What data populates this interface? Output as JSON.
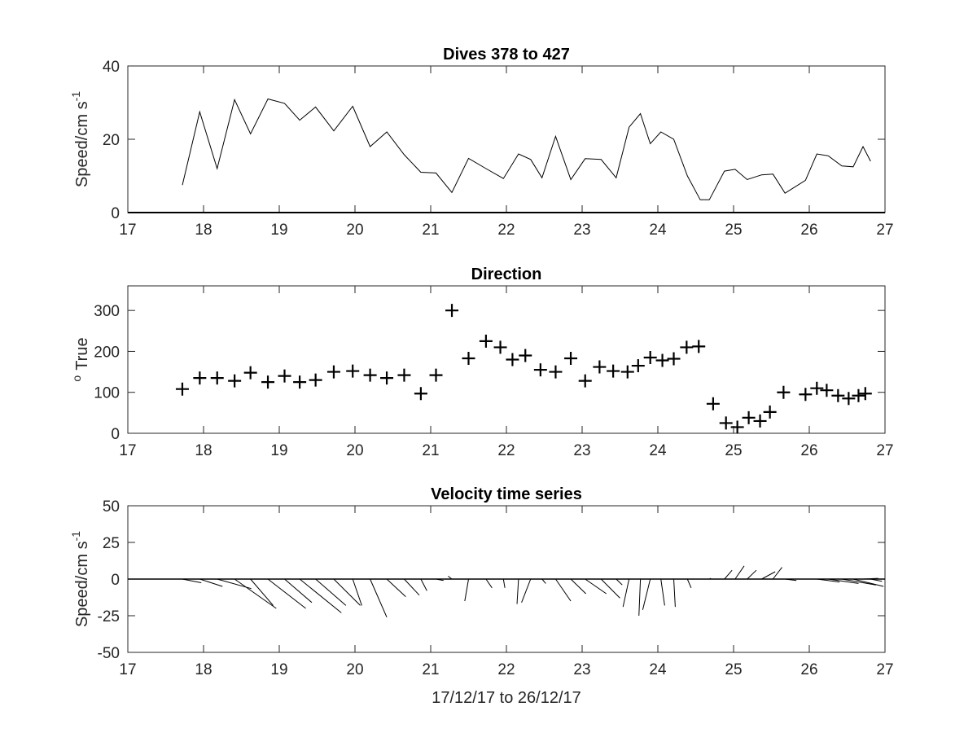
{
  "chart_data": [
    {
      "type": "line",
      "title": "Dives 378 to 427",
      "ylabel": "Speed/cm s",
      "ylabel_sup": "-1",
      "xlim": [
        17,
        27
      ],
      "ylim": [
        0,
        40
      ],
      "xticks": [
        17,
        18,
        19,
        20,
        21,
        22,
        23,
        24,
        25,
        26,
        27
      ],
      "yticks": [
        0,
        20,
        40
      ],
      "x": [
        17.72,
        17.95,
        18.18,
        18.41,
        18.62,
        18.85,
        19.07,
        19.27,
        19.48,
        19.72,
        19.97,
        20.2,
        20.42,
        20.65,
        20.87,
        21.07,
        21.28,
        21.5,
        21.73,
        21.96,
        22.16,
        22.32,
        22.47,
        22.65,
        22.85,
        23.04,
        23.25,
        23.45,
        23.62,
        23.77,
        23.9,
        24.04,
        24.21,
        24.39,
        24.56,
        24.68,
        24.88,
        25.02,
        25.18,
        25.37,
        25.52,
        25.68,
        25.95,
        26.1,
        26.25,
        26.43,
        26.58,
        26.71,
        26.81
      ],
      "y": [
        7.5,
        27.5,
        12,
        30.8,
        21.5,
        31,
        29.8,
        25.2,
        28.8,
        22.3,
        29,
        18,
        22,
        15.8,
        11,
        10.8,
        5.5,
        14.8,
        12,
        9.3,
        16,
        14.5,
        9.5,
        20.8,
        9,
        14.7,
        14.5,
        9.5,
        23.3,
        27,
        18.8,
        22,
        20,
        10,
        3.5,
        3.5,
        11.3,
        11.8,
        9,
        10.3,
        10.5,
        5.3,
        8.8,
        16,
        15.5,
        12.7,
        12.5,
        18,
        14
      ]
    },
    {
      "type": "scatter",
      "title": "Direction",
      "ylabel": "True",
      "ylabel_sup": "o",
      "marker": "+",
      "xlim": [
        17,
        27
      ],
      "ylim": [
        0,
        360
      ],
      "xticks": [
        17,
        18,
        19,
        20,
        21,
        22,
        23,
        24,
        25,
        26,
        27
      ],
      "yticks": [
        0,
        100,
        200,
        300
      ],
      "x": [
        17.72,
        17.95,
        18.18,
        18.41,
        18.62,
        18.85,
        19.07,
        19.27,
        19.48,
        19.72,
        19.97,
        20.2,
        20.42,
        20.65,
        20.87,
        21.07,
        21.28,
        21.5,
        21.73,
        21.92,
        22.08,
        22.25,
        22.45,
        22.65,
        22.85,
        23.04,
        23.23,
        23.41,
        23.6,
        23.74,
        23.9,
        24.06,
        24.21,
        24.38,
        24.54,
        24.73,
        24.9,
        25.05,
        25.2,
        25.35,
        25.48,
        25.66,
        25.95,
        26.1,
        26.23,
        26.38,
        26.52,
        26.65,
        26.74
      ],
      "y": [
        108,
        135,
        135,
        128,
        148,
        125,
        140,
        125,
        130,
        150,
        152,
        142,
        135,
        142,
        97,
        142,
        300,
        183,
        225,
        210,
        180,
        190,
        155,
        150,
        183,
        128,
        162,
        152,
        150,
        165,
        185,
        178,
        182,
        210,
        212,
        72,
        25,
        15,
        38,
        30,
        52,
        100,
        95,
        110,
        105,
        92,
        85,
        92,
        97
      ]
    },
    {
      "type": "quiver",
      "title": "Velocity time series",
      "ylabel": "Speed/cm s",
      "ylabel_sup": "-1",
      "xlabel": "17/12/17 to 26/12/17",
      "xlim": [
        17,
        27
      ],
      "ylim": [
        -50,
        50
      ],
      "xticks": [
        17,
        18,
        19,
        20,
        21,
        22,
        23,
        24,
        25,
        26,
        27
      ],
      "yticks": [
        -50,
        -25,
        0,
        25,
        50
      ],
      "ytick_labels": [
        "-50",
        "-25",
        "0",
        "25",
        "50"
      ],
      "x": [
        17.72,
        17.95,
        18.18,
        18.41,
        18.62,
        18.85,
        19.07,
        19.27,
        19.48,
        19.72,
        19.97,
        20.2,
        20.42,
        20.65,
        20.87,
        21.07,
        21.28,
        21.5,
        21.73,
        21.96,
        22.16,
        22.32,
        22.47,
        22.65,
        22.85,
        23.04,
        23.25,
        23.45,
        23.62,
        23.77,
        23.9,
        24.04,
        24.21,
        24.39,
        24.56,
        24.68,
        24.88,
        25.02,
        25.18,
        25.37,
        25.52,
        25.68,
        25.95,
        26.1,
        26.25,
        26.43,
        26.58,
        26.71,
        26.81
      ],
      "u": [
        0.25,
        0.3,
        0.45,
        0.55,
        0.3,
        0.5,
        0.36,
        0.55,
        0.4,
        0.35,
        0.12,
        0.22,
        0.25,
        0.2,
        0.08,
        0.1,
        -0.05,
        -0.05,
        0.08,
        0.02,
        -0.02,
        -0.12,
        0.05,
        0.2,
        0.2,
        0.28,
        0.25,
        0.08,
        -0.08,
        -0.02,
        -0.1,
        0.05,
        0.02,
        0.05,
        0.04,
        0.02,
        0.1,
        0.12,
        0.12,
        0.18,
        0.12,
        0.15,
        0.18,
        0.3,
        0.4,
        0.45,
        0.4,
        0.2,
        0.15
      ],
      "v": [
        -2.5,
        -5,
        -6.5,
        -20,
        -18,
        -20,
        -16,
        -23,
        -18,
        -18,
        -18,
        -26,
        -12,
        -11,
        -8,
        -1,
        2,
        -15,
        -6,
        -6,
        -17,
        -16,
        -3,
        -15,
        -10,
        -10,
        -13,
        -4,
        -19,
        -25,
        -21,
        -18,
        -19,
        -6,
        0,
        0.5,
        6,
        9,
        6,
        5,
        8,
        -1,
        0,
        -2,
        -3,
        -4,
        -5,
        0.5,
        -1.5
      ]
    }
  ]
}
